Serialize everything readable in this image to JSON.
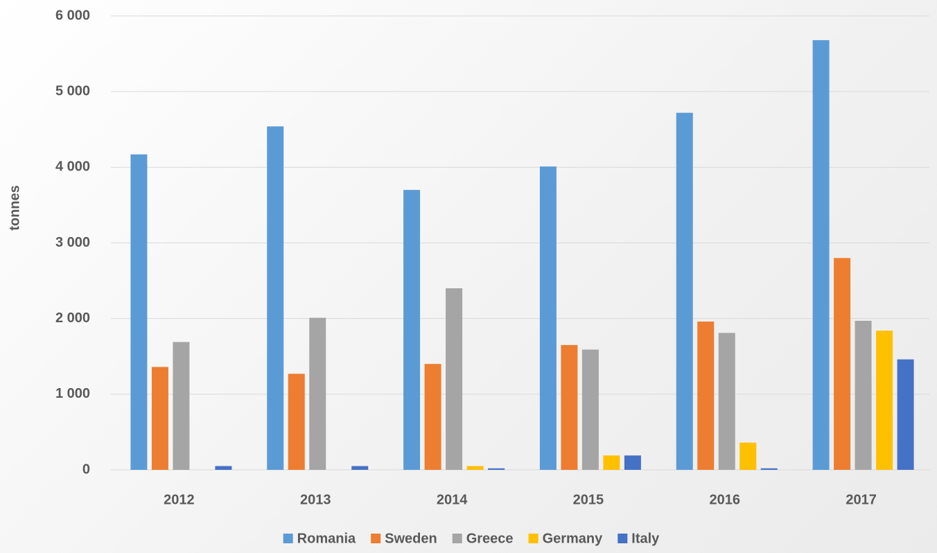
{
  "chart_data": {
    "type": "bar",
    "y_label": "tonnes",
    "categories": [
      "2012",
      "2013",
      "2014",
      "2015",
      "2016",
      "2017"
    ],
    "series": [
      {
        "name": "Romania",
        "color": "#5b9bd5",
        "values": [
          4170,
          4540,
          3700,
          4010,
          4720,
          5680
        ]
      },
      {
        "name": "Sweden",
        "color": "#ed7d31",
        "values": [
          1360,
          1270,
          1400,
          1650,
          1960,
          2800
        ]
      },
      {
        "name": "Greece",
        "color": "#a5a5a5",
        "values": [
          1690,
          2010,
          2400,
          1590,
          1810,
          1970
        ]
      },
      {
        "name": "Germany",
        "color": "#ffc000",
        "values": [
          0,
          0,
          50,
          190,
          360,
          1840
        ]
      },
      {
        "name": "Italy",
        "color": "#4472c4",
        "values": [
          50,
          50,
          20,
          190,
          20,
          1460
        ]
      }
    ],
    "ylim": [
      0,
      6000
    ],
    "yticks": [
      0,
      {
        "value": 1000,
        "label": "1 000"
      },
      {
        "value": 2000,
        "label": "2 000"
      },
      {
        "value": 3000,
        "label": "3 000"
      },
      {
        "value": 4000,
        "label": "4 000"
      },
      {
        "value": 5000,
        "label": "5 000"
      },
      {
        "value": 6000,
        "label": "6 000"
      }
    ],
    "grid": true,
    "legend": "bottom"
  }
}
